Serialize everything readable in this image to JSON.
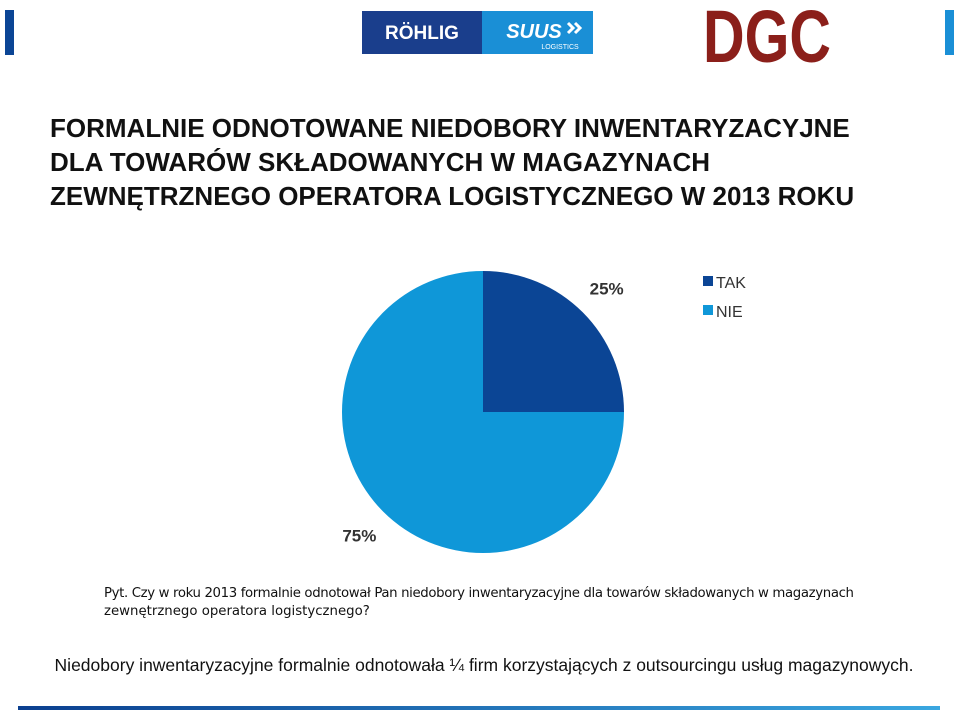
{
  "header": {
    "logo_left": "RÖHLIG",
    "logo_middle": "SUUS",
    "logo_middle_sub": "LOGISTICS",
    "logo_right": "DGC"
  },
  "chart_data": {
    "type": "pie",
    "title": [
      "FORMALNIE ODNOTOWANE NIEDOBORY INWENTARYZACYJNE",
      "DLA TOWARÓW SKŁADOWANYCH W MAGAZYNACH",
      "ZEWNĘTRZNEGO OPERATORA LOGISTYCZNEGO W 2013 ROKU"
    ],
    "categories": [
      "TAK",
      "NIE"
    ],
    "values": [
      25,
      75
    ],
    "value_labels": [
      "25%",
      "75%"
    ],
    "colors": [
      "#0b4595",
      "#0f97d8"
    ],
    "legend": "top-right"
  },
  "caption": [
    "Pyt. Czy w roku 2013 formalnie odnotował Pan niedobory inwentaryzacyjne dla towarów składowanych w magazynach",
    "zewnętrznego operatora logistycznego?"
  ],
  "footer": "Niedobory inwentaryzacyjne formalnie odnotowała ¼ firm korzystających z outsourcingu usług magazynowych."
}
